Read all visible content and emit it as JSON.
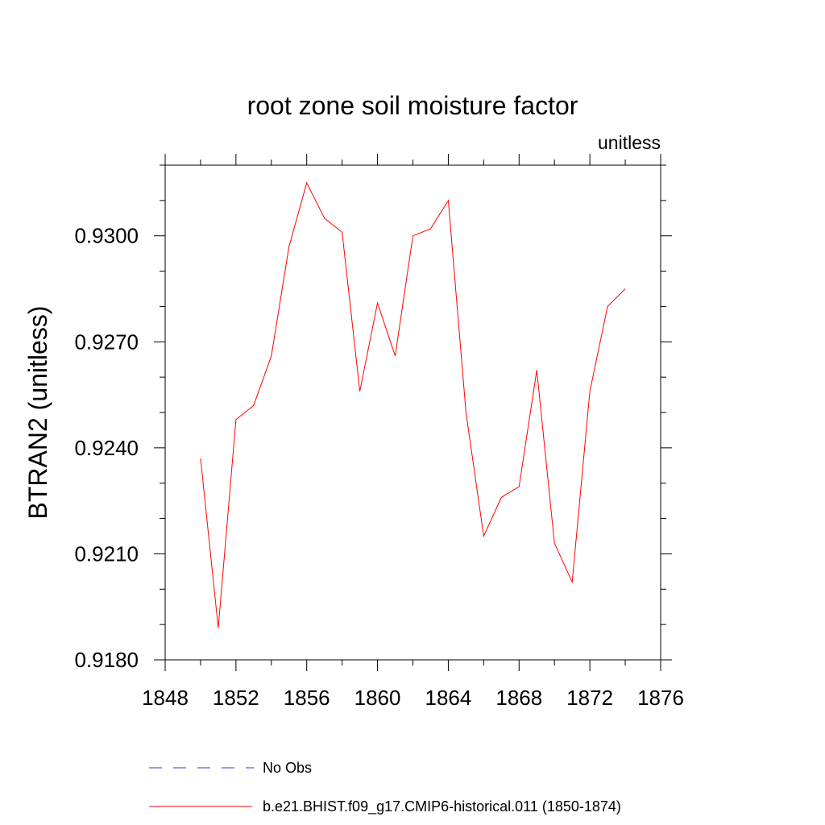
{
  "chart_data": {
    "type": "line",
    "title": "root zone soil moisture factor",
    "units_label": "unitless",
    "ylabel": "BTRAN2  (unitless)",
    "xlabel": "",
    "xlim": [
      1848,
      1876
    ],
    "ylim": [
      0.918,
      0.932
    ],
    "x_ticks": [
      "1848",
      "1852",
      "1856",
      "1860",
      "1864",
      "1868",
      "1872",
      "1876"
    ],
    "y_ticks": [
      "0.9180",
      "0.9210",
      "0.9240",
      "0.9270",
      "0.9300"
    ],
    "grid": false,
    "legend_position": "bottom",
    "series": [
      {
        "name": "No Obs",
        "color": "#3333cc",
        "dash": "dashed",
        "x": [],
        "values": []
      },
      {
        "name": "b.e21.BHIST.f09_g17.CMIP6-historical.011 (1850-1874)",
        "color": "#ff0000",
        "dash": "solid",
        "x": [
          1850,
          1851,
          1852,
          1853,
          1854,
          1855,
          1856,
          1857,
          1858,
          1859,
          1860,
          1861,
          1862,
          1863,
          1864,
          1865,
          1866,
          1867,
          1868,
          1869,
          1870,
          1871,
          1872,
          1873,
          1874
        ],
        "values": [
          0.9237,
          0.9189,
          0.9248,
          0.9252,
          0.9266,
          0.9297,
          0.9315,
          0.9305,
          0.9301,
          0.9256,
          0.9281,
          0.9266,
          0.93,
          0.9302,
          0.931,
          0.925,
          0.9215,
          0.9226,
          0.9229,
          0.9262,
          0.9213,
          0.9202,
          0.9256,
          0.928,
          0.9285
        ]
      }
    ]
  }
}
